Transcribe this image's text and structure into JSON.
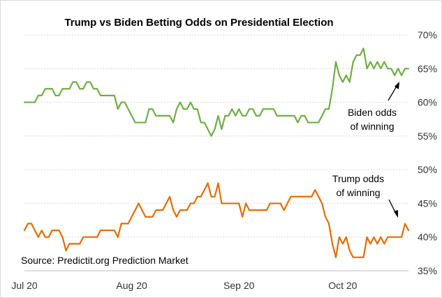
{
  "chart_data": {
    "type": "line",
    "title": "Trump vs Biden Betting Odds on Presidential Election",
    "xlabel": "",
    "ylabel": "",
    "x": [
      "2020-07-01",
      "2020-07-02",
      "2020-07-03",
      "2020-07-04",
      "2020-07-05",
      "2020-07-06",
      "2020-07-07",
      "2020-07-08",
      "2020-07-09",
      "2020-07-10",
      "2020-07-11",
      "2020-07-12",
      "2020-07-13",
      "2020-07-14",
      "2020-07-15",
      "2020-07-16",
      "2020-07-17",
      "2020-07-18",
      "2020-07-19",
      "2020-07-20",
      "2020-07-21",
      "2020-07-22",
      "2020-07-23",
      "2020-07-24",
      "2020-07-25",
      "2020-07-26",
      "2020-07-27",
      "2020-07-28",
      "2020-07-29",
      "2020-07-30",
      "2020-07-31",
      "2020-08-01",
      "2020-08-02",
      "2020-08-03",
      "2020-08-04",
      "2020-08-05",
      "2020-08-06",
      "2020-08-07",
      "2020-08-08",
      "2020-08-09",
      "2020-08-10",
      "2020-08-11",
      "2020-08-12",
      "2020-08-13",
      "2020-08-14",
      "2020-08-15",
      "2020-08-16",
      "2020-08-17",
      "2020-08-18",
      "2020-08-19",
      "2020-08-20",
      "2020-08-21",
      "2020-08-22",
      "2020-08-23",
      "2020-08-24",
      "2020-08-25",
      "2020-08-26",
      "2020-08-27",
      "2020-08-28",
      "2020-08-29",
      "2020-08-30",
      "2020-08-31",
      "2020-09-01",
      "2020-09-02",
      "2020-09-03",
      "2020-09-04",
      "2020-09-05",
      "2020-09-06",
      "2020-09-07",
      "2020-09-08",
      "2020-09-09",
      "2020-09-10",
      "2020-09-11",
      "2020-09-12",
      "2020-09-13",
      "2020-09-14",
      "2020-09-15",
      "2020-09-16",
      "2020-09-17",
      "2020-09-18",
      "2020-09-19",
      "2020-09-20",
      "2020-09-21",
      "2020-09-22",
      "2020-09-23",
      "2020-09-24",
      "2020-09-25",
      "2020-09-26",
      "2020-09-27",
      "2020-09-28",
      "2020-09-29",
      "2020-09-30",
      "2020-10-01",
      "2020-10-02",
      "2020-10-03",
      "2020-10-04",
      "2020-10-05",
      "2020-10-06",
      "2020-10-07",
      "2020-10-08",
      "2020-10-09",
      "2020-10-10",
      "2020-10-11",
      "2020-10-12",
      "2020-10-13",
      "2020-10-14",
      "2020-10-15",
      "2020-10-16",
      "2020-10-17",
      "2020-10-18",
      "2020-10-19",
      "2020-10-20"
    ],
    "series": [
      {
        "name": "Biden odds of winning",
        "color": "#70ad47",
        "values": [
          60,
          60,
          60,
          60,
          61,
          61,
          62,
          62,
          62,
          61,
          61,
          62,
          62,
          62,
          63,
          63,
          62,
          62,
          63,
          63,
          62,
          62,
          61,
          61,
          61,
          61,
          61,
          59,
          60,
          60,
          59,
          58,
          57,
          57,
          57,
          57,
          59,
          59,
          58,
          58,
          58,
          58,
          58,
          57,
          59,
          60,
          59,
          59,
          60,
          59,
          59,
          57,
          57,
          56,
          55,
          56,
          58,
          56,
          58,
          58,
          59,
          58,
          59,
          58,
          58,
          59,
          59,
          58,
          58,
          59,
          59,
          59,
          59,
          58,
          58,
          58,
          58,
          58,
          58,
          57,
          58,
          58,
          57,
          57,
          57,
          57,
          58,
          59,
          59,
          62,
          66,
          64,
          63,
          64,
          63,
          66,
          67,
          67,
          68,
          65,
          66,
          65,
          66,
          65,
          66,
          65,
          65,
          64,
          65,
          64,
          65,
          65
        ]
      },
      {
        "name": "Trump odds of winning",
        "color": "#e36c09",
        "values": [
          41,
          42,
          42,
          41,
          40,
          41,
          40,
          40,
          41,
          41,
          41,
          40,
          38,
          39,
          39,
          39,
          39,
          40,
          40,
          40,
          40,
          40,
          41,
          41,
          41,
          41,
          41,
          40,
          42,
          42,
          42,
          43,
          44,
          45,
          44,
          43,
          43,
          43,
          44,
          44,
          44,
          45,
          46,
          44,
          43,
          44,
          44,
          44,
          45,
          45,
          46,
          46,
          47,
          48,
          46,
          46,
          48,
          45,
          45,
          45,
          45,
          45,
          45,
          43,
          45,
          44,
          44,
          44,
          44,
          44,
          44,
          45,
          45,
          45,
          45,
          44,
          45,
          46,
          46,
          46,
          46,
          46,
          46,
          46,
          47,
          46,
          45,
          43,
          42,
          39,
          37,
          40,
          39,
          40,
          38,
          37,
          37,
          37,
          37,
          40,
          39,
          40,
          39,
          40,
          39,
          40,
          40,
          40,
          40,
          40,
          42,
          41
        ]
      }
    ],
    "x_ticks": [
      "Jul 20",
      "Aug 20",
      "Sep 20",
      "Oct 20"
    ],
    "y_ticks": [
      "35%",
      "40%",
      "45%",
      "50%",
      "55%",
      "60%",
      "65%",
      "70%"
    ],
    "ylim": [
      35,
      70
    ],
    "grid": true,
    "annotations": [
      {
        "lines": [
          "Biden odds",
          "of winning"
        ]
      },
      {
        "lines": [
          "Trump odds",
          "of winning"
        ]
      }
    ],
    "source": "Source:  Predictit.org Prediction Market"
  }
}
